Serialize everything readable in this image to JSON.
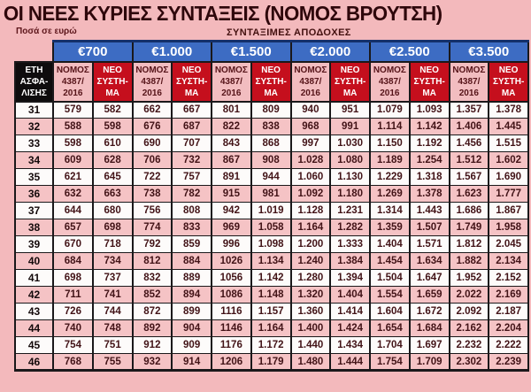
{
  "title": "ΟΙ ΝΕΕΣ ΚΥΡΙΕΣ ΣΥΝΤΑΞΕΙΣ (ΝΟΜΟΣ ΒΡΟΥΤΣΗ)",
  "notes": {
    "left": "Ποσά σε ευρώ",
    "center": "ΣΥΝΤΑΞΙΜΕΣ ΑΠΟΔΟΧΕΣ"
  },
  "colors": {
    "page_bg": "#f3b9bc",
    "group_header_blue": "#3d6cc3",
    "new_system_red": "#c50f1d",
    "years_header_black": "#0e0c0d",
    "row_pink": "#f5c3c5",
    "row_white": "#fdfbfa",
    "grid_black": "#1a181a",
    "title_maroon": "#2e070b"
  },
  "table": {
    "years_header_lines": [
      "ΕΤΗ",
      "ΑΣΦΑ-",
      "ΛΙΣΗΣ"
    ],
    "groups": [
      "€700",
      "€1.000",
      "€1.500",
      "€2.000",
      "€2.500",
      "€3.500"
    ],
    "law_col_lines": [
      "ΝΟΜΟΣ",
      "4387/",
      "2016"
    ],
    "new_col_lines": [
      "ΝΕΟ",
      "ΣΥΣΤΗ-",
      "ΜΑ"
    ],
    "rows": [
      {
        "years": "31",
        "values": [
          "579",
          "582",
          "662",
          "667",
          "801",
          "809",
          "940",
          "951",
          "1.079",
          "1.093",
          "1.357",
          "1.378"
        ]
      },
      {
        "years": "32",
        "values": [
          "588",
          "598",
          "676",
          "687",
          "822",
          "838",
          "968",
          "991",
          "1.114",
          "1.142",
          "1.406",
          "1.445"
        ]
      },
      {
        "years": "33",
        "values": [
          "598",
          "610",
          "690",
          "707",
          "843",
          "868",
          "997",
          "1.030",
          "1.150",
          "1.192",
          "1.456",
          "1.515"
        ]
      },
      {
        "years": "34",
        "values": [
          "609",
          "628",
          "706",
          "732",
          "867",
          "908",
          "1.028",
          "1.080",
          "1.189",
          "1.254",
          "1.512",
          "1.602"
        ]
      },
      {
        "years": "35",
        "values": [
          "621",
          "645",
          "722",
          "757",
          "891",
          "944",
          "1.060",
          "1.130",
          "1.229",
          "1.318",
          "1.567",
          "1.690"
        ]
      },
      {
        "years": "36",
        "values": [
          "632",
          "663",
          "738",
          "782",
          "915",
          "981",
          "1.092",
          "1.180",
          "1.269",
          "1.378",
          "1.623",
          "1.777"
        ]
      },
      {
        "years": "37",
        "values": [
          "644",
          "680",
          "756",
          "808",
          "942",
          "1.019",
          "1.128",
          "1.231",
          "1.314",
          "1.443",
          "1.686",
          "1.867"
        ]
      },
      {
        "years": "38",
        "values": [
          "657",
          "698",
          "774",
          "833",
          "969",
          "1.058",
          "1.164",
          "1.282",
          "1.359",
          "1.507",
          "1.749",
          "1.958"
        ]
      },
      {
        "years": "39",
        "values": [
          "670",
          "718",
          "792",
          "859",
          "996",
          "1.098",
          "1.200",
          "1.333",
          "1.404",
          "1.571",
          "1.812",
          "2.045"
        ]
      },
      {
        "years": "40",
        "values": [
          "684",
          "734",
          "812",
          "884",
          "1026",
          "1.134",
          "1.240",
          "1.384",
          "1.454",
          "1.634",
          "1.882",
          "2.134"
        ]
      },
      {
        "years": "41",
        "values": [
          "698",
          "737",
          "832",
          "889",
          "1056",
          "1.142",
          "1.280",
          "1.394",
          "1.504",
          "1.647",
          "1.952",
          "2.152"
        ]
      },
      {
        "years": "42",
        "values": [
          "711",
          "741",
          "852",
          "894",
          "1086",
          "1.148",
          "1.320",
          "1.404",
          "1.554",
          "1.659",
          "2.022",
          "2.169"
        ]
      },
      {
        "years": "43",
        "values": [
          "726",
          "744",
          "872",
          "899",
          "1116",
          "1.157",
          "1.360",
          "1.414",
          "1.604",
          "1.672",
          "2.092",
          "2.187"
        ]
      },
      {
        "years": "44",
        "values": [
          "740",
          "748",
          "892",
          "904",
          "1146",
          "1.164",
          "1.400",
          "1.424",
          "1.654",
          "1.684",
          "2.162",
          "2.204"
        ]
      },
      {
        "years": "45",
        "values": [
          "754",
          "751",
          "912",
          "909",
          "1176",
          "1.172",
          "1.440",
          "1.434",
          "1.704",
          "1.697",
          "2.232",
          "2.222"
        ]
      },
      {
        "years": "46",
        "values": [
          "768",
          "755",
          "932",
          "914",
          "1206",
          "1.179",
          "1.480",
          "1.444",
          "1.754",
          "1.709",
          "2.302",
          "2.239"
        ]
      }
    ]
  }
}
